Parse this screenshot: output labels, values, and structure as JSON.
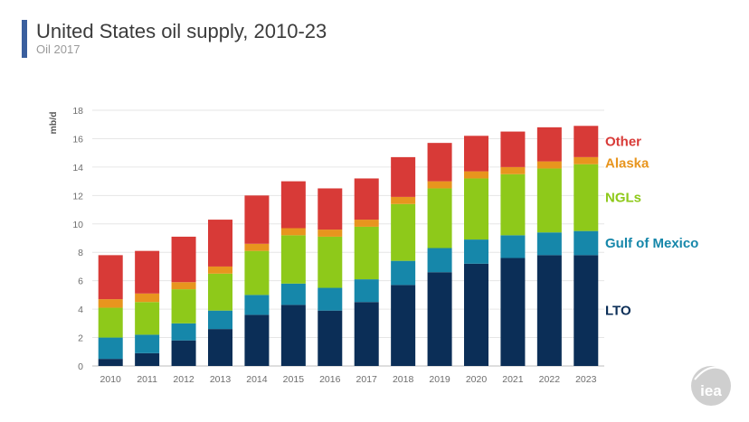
{
  "header": {
    "title": "United States oil supply, 2010-23",
    "subtitle": "Oil 2017"
  },
  "logo": {
    "text": "iea"
  },
  "chart_data": {
    "type": "bar",
    "stacked": true,
    "title": "United States oil supply, 2010-23",
    "ylabel": "mb/d",
    "xlabel": "",
    "ylim": [
      0,
      18
    ],
    "yticks": [
      0,
      2,
      4,
      6,
      8,
      10,
      12,
      14,
      16,
      18
    ],
    "grid": true,
    "legend_position": "right",
    "categories": [
      "2010",
      "2011",
      "2012",
      "2013",
      "2014",
      "2015",
      "2016",
      "2017",
      "2018",
      "2019",
      "2020",
      "2021",
      "2022",
      "2023"
    ],
    "series": [
      {
        "name": "LTO",
        "color": "#0b2e57",
        "values": [
          0.5,
          0.9,
          1.8,
          2.6,
          3.6,
          4.3,
          3.9,
          4.5,
          5.7,
          6.6,
          7.2,
          7.6,
          7.8,
          7.8
        ]
      },
      {
        "name": "Gulf of Mexico",
        "color": "#1687aa",
        "values": [
          1.5,
          1.3,
          1.2,
          1.3,
          1.4,
          1.5,
          1.6,
          1.6,
          1.7,
          1.7,
          1.7,
          1.6,
          1.6,
          1.7
        ]
      },
      {
        "name": "NGLs",
        "color": "#8ec91a",
        "values": [
          2.1,
          2.3,
          2.4,
          2.6,
          3.1,
          3.4,
          3.6,
          3.7,
          4.0,
          4.2,
          4.3,
          4.3,
          4.5,
          4.7
        ]
      },
      {
        "name": "Alaska",
        "color": "#e8951e",
        "values": [
          0.6,
          0.6,
          0.5,
          0.5,
          0.5,
          0.5,
          0.5,
          0.5,
          0.5,
          0.5,
          0.5,
          0.5,
          0.5,
          0.5
        ]
      },
      {
        "name": "Other",
        "color": "#d83a37",
        "values": [
          3.1,
          3.0,
          3.2,
          3.3,
          3.4,
          3.3,
          2.9,
          2.9,
          2.8,
          2.7,
          2.5,
          2.5,
          2.4,
          2.2
        ]
      }
    ],
    "legend": [
      {
        "name": "Other",
        "color": "#d83a37"
      },
      {
        "name": "Alaska",
        "color": "#e8951e"
      },
      {
        "name": "NGLs",
        "color": "#8ec91a"
      },
      {
        "name": "Gulf of Mexico",
        "color": "#1687aa"
      },
      {
        "name": "LTO",
        "color": "#0b2e57"
      }
    ]
  }
}
